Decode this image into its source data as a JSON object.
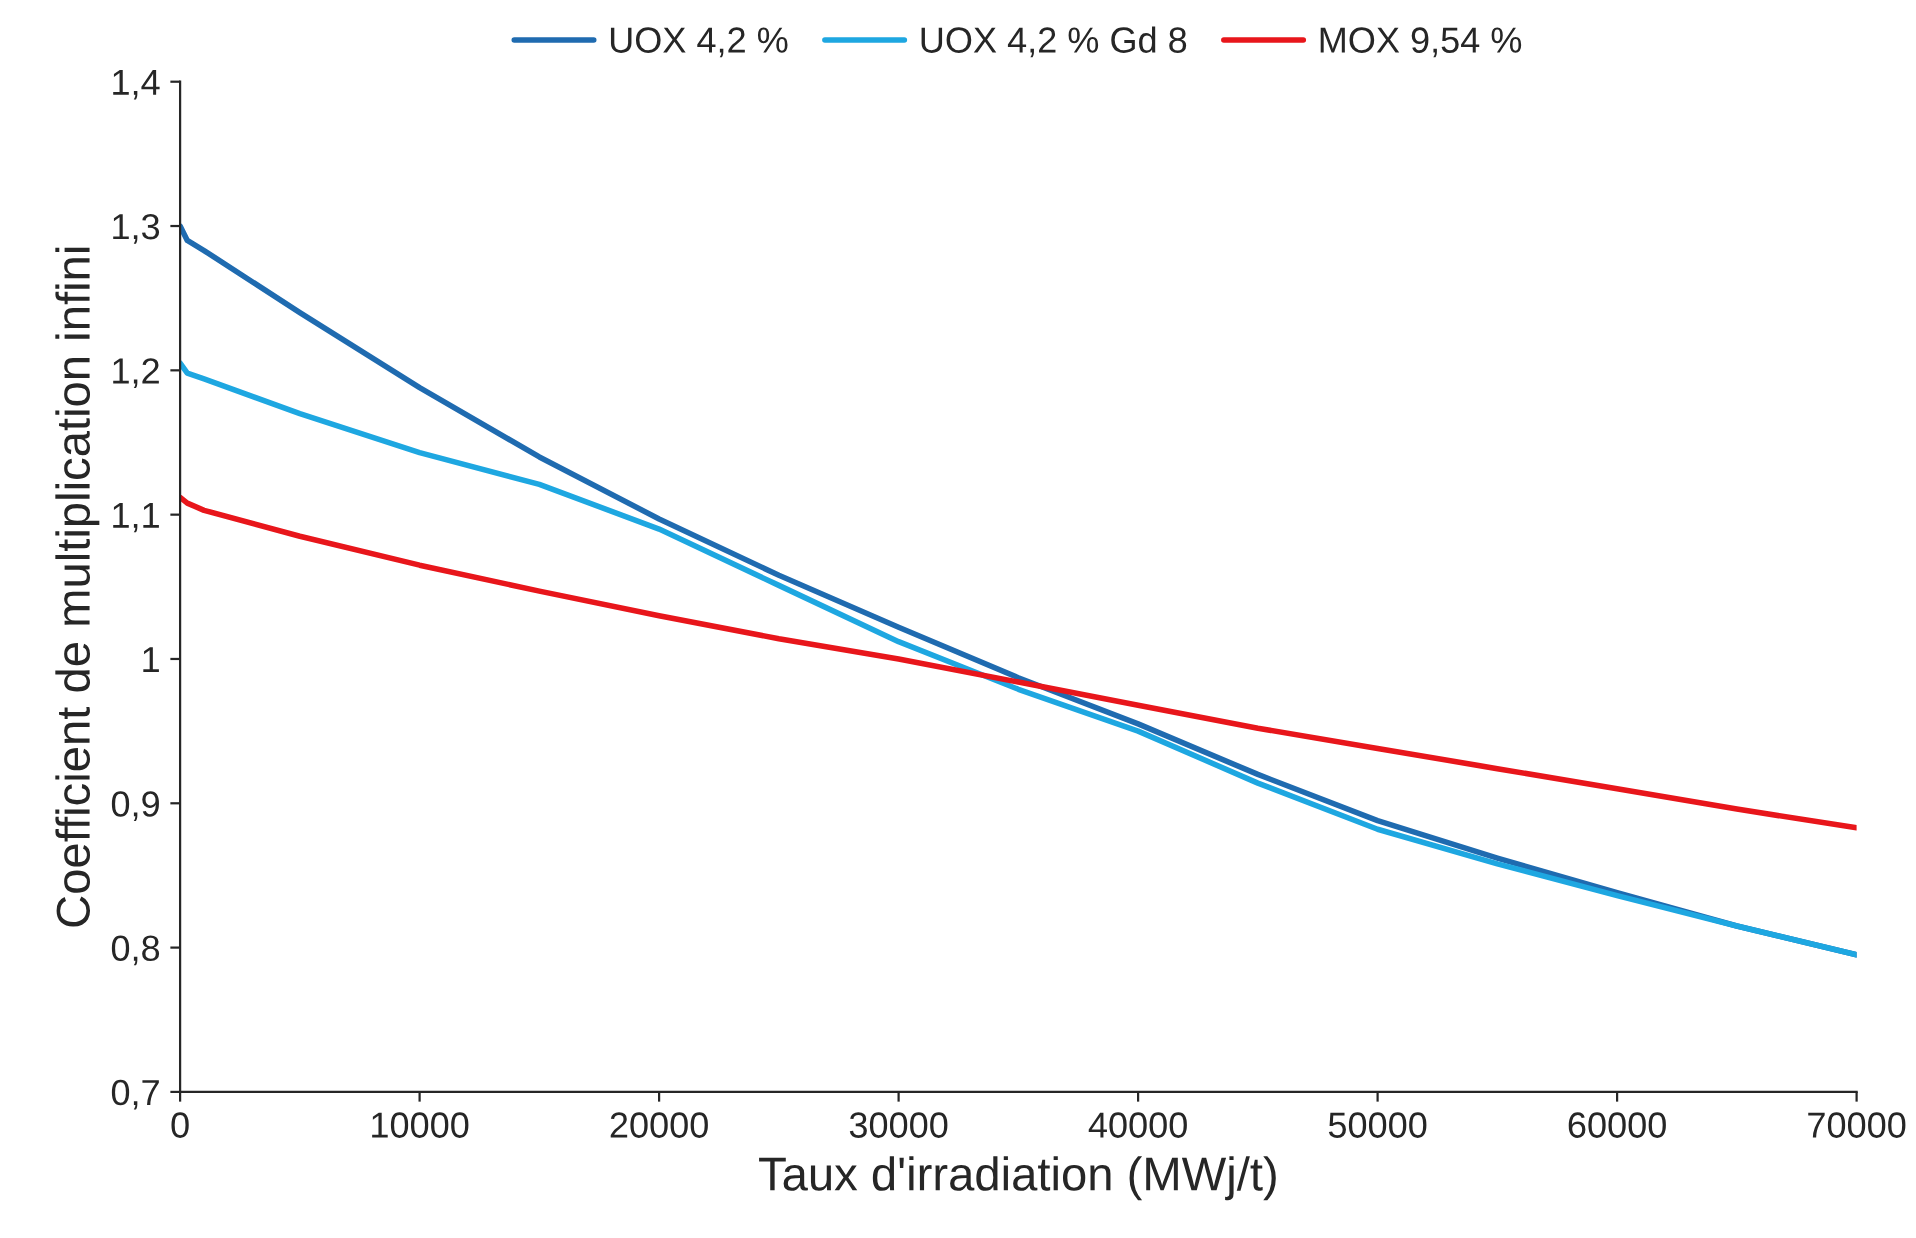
{
  "chart_data": {
    "type": "line",
    "xlabel": "Taux d'irradiation (MWj/t)",
    "ylabel": "Coefficient de multiplication infini",
    "x": [
      0,
      300,
      1000,
      5000,
      10000,
      15000,
      20000,
      25000,
      30000,
      35000,
      40000,
      45000,
      50000,
      55000,
      60000,
      65000,
      70000
    ],
    "series": [
      {
        "name": "UOX 4,2 %",
        "color": "#1f6bb0",
        "values": [
          1.3,
          1.29,
          1.283,
          1.24,
          1.188,
          1.14,
          1.097,
          1.058,
          1.022,
          0.987,
          0.955,
          0.92,
          0.888,
          0.862,
          0.838,
          0.815,
          0.795
        ]
      },
      {
        "name": "UOX 4,2 % Gd 8",
        "color": "#1ea7e1",
        "values": [
          1.205,
          1.198,
          1.194,
          1.17,
          1.143,
          1.121,
          1.09,
          1.051,
          1.012,
          0.979,
          0.95,
          0.914,
          0.882,
          0.858,
          0.836,
          0.815,
          0.795
        ]
      },
      {
        "name": "MOX 9,54 %",
        "color": "#e8161b",
        "values": [
          1.112,
          1.108,
          1.103,
          1.085,
          1.065,
          1.047,
          1.03,
          1.014,
          1.0,
          0.984,
          0.968,
          0.952,
          0.938,
          0.924,
          0.91,
          0.896,
          0.883
        ]
      }
    ],
    "xlim": [
      0,
      70000
    ],
    "xticks": [
      0,
      10000,
      20000,
      30000,
      40000,
      50000,
      60000,
      70000
    ],
    "ylim": [
      0.7,
      1.4
    ],
    "yticks": [
      {
        "value": 0.7,
        "label": "0,7"
      },
      {
        "value": 0.8,
        "label": "0,8"
      },
      {
        "value": 0.9,
        "label": "0,9"
      },
      {
        "value": 1,
        "label": "1"
      },
      {
        "value": 1.1,
        "label": "1,1"
      },
      {
        "value": 1.2,
        "label": "1,2"
      },
      {
        "value": 1.3,
        "label": "1,3"
      },
      {
        "value": 1.4,
        "label": "1,4"
      }
    ],
    "grid": false,
    "legend": "top",
    "marker": "none",
    "line_style": "solid"
  }
}
